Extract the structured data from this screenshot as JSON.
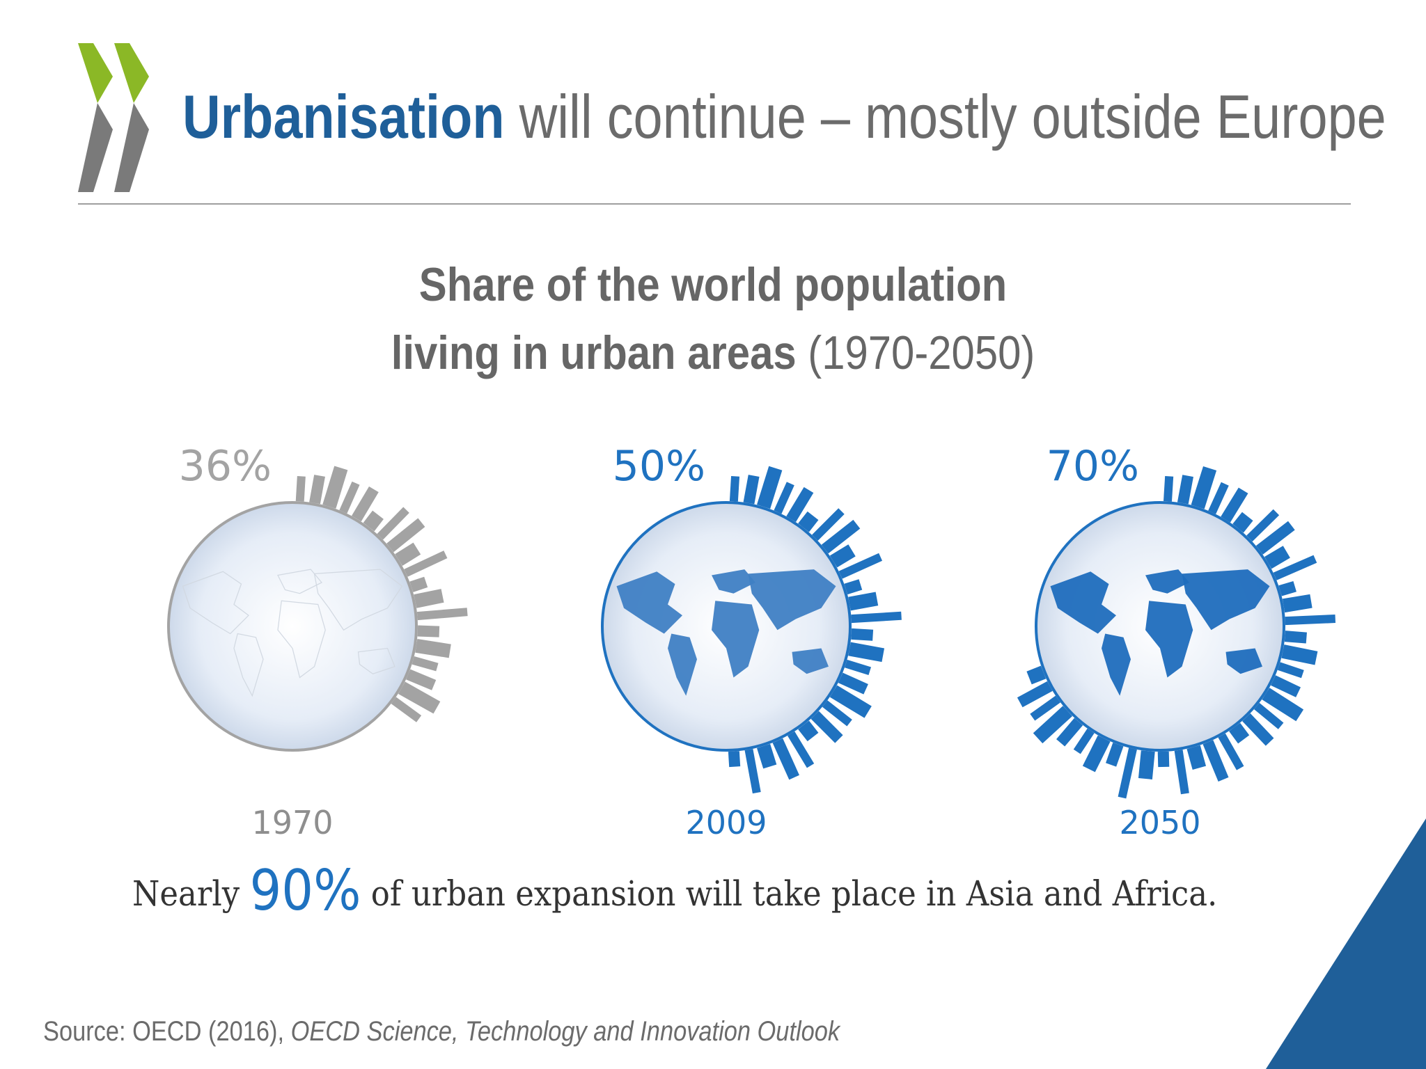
{
  "header": {
    "title_strong": "Urbanisation",
    "title_rest": " will continue – mostly outside Europe"
  },
  "subtitle": {
    "line1": "Share of the world population",
    "line2_bold": "living in urban areas",
    "line2_rest": " (1970-2050)"
  },
  "chart_data": {
    "type": "pictogram",
    "title": "Share of the world population living in urban areas (1970-2050)",
    "categories": [
      "1970",
      "2009",
      "2050"
    ],
    "values": [
      36,
      50,
      70
    ],
    "value_labels": [
      "36%",
      "50%",
      "70%"
    ],
    "unit": "%"
  },
  "summary": {
    "prefix": "Nearly ",
    "highlight": "90%",
    "suffix": " of urban expansion will take place in Asia and Africa."
  },
  "source": {
    "prefix": "Source: OECD (2016), ",
    "italic": "OECD Science, Technology and Innovation Outlook"
  },
  "colors": {
    "brand_blue": "#1f5f99",
    "accent_blue": "#1f72c0",
    "grey": "#a3a3a3",
    "logo_green": "#8bb826",
    "logo_grey": "#7a7a7a"
  }
}
